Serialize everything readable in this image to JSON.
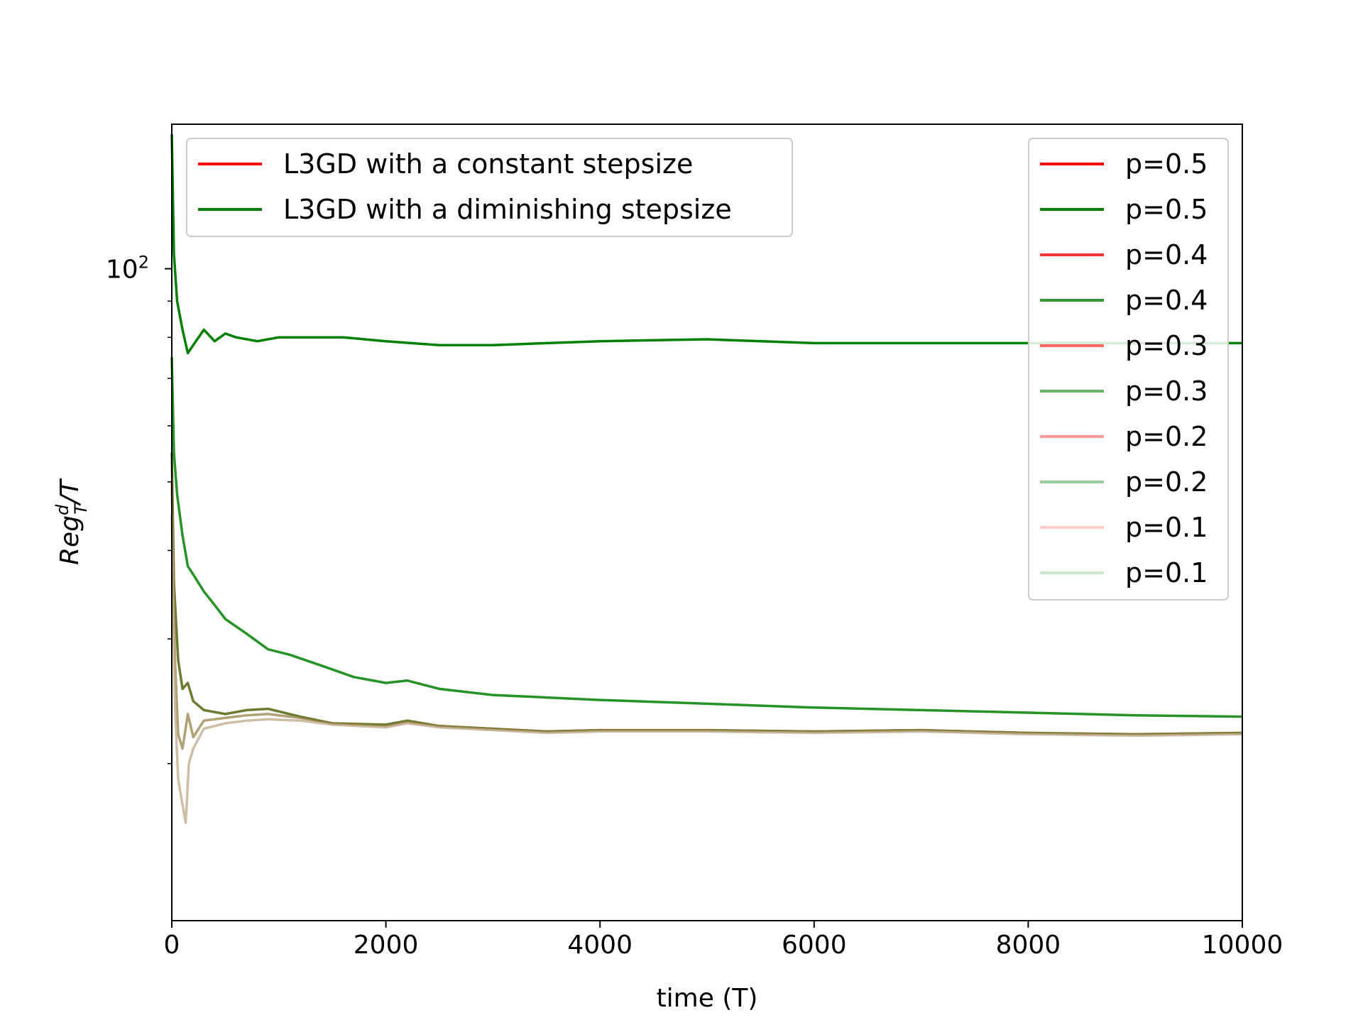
{
  "chart_data": {
    "type": "line",
    "title": "",
    "xlabel": "time (T)",
    "ylabel": {
      "base": "Reg",
      "sup": "d",
      "sub": "T",
      "suffix": "/T"
    },
    "xlim": [
      0,
      10000
    ],
    "ylim": [
      12,
      160
    ],
    "yscale": "log",
    "xticks": [
      0,
      2000,
      4000,
      6000,
      8000,
      10000
    ],
    "xtick_labels": [
      "0",
      "2000",
      "4000",
      "6000",
      "8000",
      "10000"
    ],
    "yticks_major": [
      {
        "value": 100,
        "base": "10",
        "exp": "2"
      }
    ],
    "yticks_minor": [
      20,
      30,
      40,
      50,
      60,
      70,
      80,
      90
    ],
    "grid": false,
    "colors": {
      "constant": "#ff0000",
      "diminishing": "#008000",
      "overlap": "#5a6e1a"
    },
    "legend_left": {
      "placement": "top-left",
      "entries": [
        {
          "label": "L3GD with a constant stepsize",
          "color": "#ff0000",
          "opacity": 1
        },
        {
          "label": "L3GD with a diminishing stepsize",
          "color": "#008000",
          "opacity": 1
        }
      ]
    },
    "legend_right": {
      "placement": "top-right",
      "entries": [
        {
          "label": "p=0.5",
          "color": "#ff0000",
          "opacity": 1.0
        },
        {
          "label": "p=0.5",
          "color": "#008000",
          "opacity": 1.0
        },
        {
          "label": "p=0.4",
          "color": "#ff0000",
          "opacity": 0.8
        },
        {
          "label": "p=0.4",
          "color": "#008000",
          "opacity": 0.8
        },
        {
          "label": "p=0.3",
          "color": "#ff0000",
          "opacity": 0.6
        },
        {
          "label": "p=0.3",
          "color": "#008000",
          "opacity": 0.6
        },
        {
          "label": "p=0.2",
          "color": "#ff0000",
          "opacity": 0.4
        },
        {
          "label": "p=0.2",
          "color": "#008000",
          "opacity": 0.4
        },
        {
          "label": "p=0.1",
          "color": "#ff0000",
          "opacity": 0.2
        },
        {
          "label": "p=0.1",
          "color": "#008000",
          "opacity": 0.2
        }
      ]
    },
    "series": [
      {
        "color": "#008000",
        "opacity": 1.0,
        "x": [
          0,
          20,
          50,
          100,
          150,
          200,
          300,
          400,
          500,
          600,
          800,
          1000,
          1300,
          1600,
          2000,
          2500,
          3000,
          3500,
          4000,
          5000,
          6000,
          7000,
          8000,
          9000,
          10000
        ],
        "y": [
          155,
          105,
          90,
          82,
          76,
          78,
          82,
          79,
          81,
          80,
          79,
          80,
          80,
          80,
          79,
          78,
          78,
          78.5,
          79,
          79.5,
          78.5,
          78.5,
          78.5,
          78.5,
          78.5
        ]
      },
      {
        "color": "#008000",
        "opacity": 0.85,
        "x": [
          0,
          20,
          50,
          100,
          150,
          200,
          300,
          400,
          500,
          700,
          900,
          1100,
          1400,
          1700,
          2000,
          2200,
          2500,
          3000,
          3500,
          4000,
          5000,
          6000,
          7000,
          8000,
          9000,
          10000
        ],
        "y": [
          75,
          55,
          48,
          42,
          38,
          37,
          35,
          33.5,
          32,
          30.5,
          29,
          28.5,
          27.5,
          26.5,
          26,
          26.2,
          25.5,
          25,
          24.8,
          24.6,
          24.3,
          24.0,
          23.8,
          23.6,
          23.4,
          23.3
        ]
      },
      {
        "color": "#5a6e1a",
        "opacity": 0.9,
        "x": [
          0,
          20,
          60,
          100,
          150,
          200,
          300,
          500,
          700,
          900,
          1200,
          1500,
          2000,
          2200,
          2500,
          3000,
          3500,
          4000,
          5000,
          6000,
          7000,
          8000,
          9000,
          10000
        ],
        "y": [
          55,
          36,
          28,
          25.5,
          26,
          24.5,
          23.8,
          23.5,
          23.8,
          23.9,
          23.3,
          22.8,
          22.7,
          23.0,
          22.6,
          22.4,
          22.2,
          22.3,
          22.3,
          22.2,
          22.3,
          22.1,
          22.0,
          22.1
        ]
      },
      {
        "color": "#8e7a3c",
        "opacity": 0.7,
        "x": [
          0,
          30,
          60,
          100,
          150,
          200,
          300,
          500,
          700,
          900,
          1200,
          1500,
          2000,
          2200,
          2500,
          3000,
          3500,
          4000,
          5000,
          6000,
          7000,
          8000,
          9000,
          10000
        ],
        "y": [
          50,
          28,
          22,
          21,
          23.5,
          21.8,
          23,
          23.2,
          23.4,
          23.5,
          23.2,
          22.8,
          22.6,
          22.9,
          22.6,
          22.4,
          22.2,
          22.3,
          22.3,
          22.2,
          22.3,
          22.1,
          22.0,
          22.1
        ]
      },
      {
        "color": "#bfa888",
        "opacity": 0.75,
        "x": [
          0,
          30,
          60,
          100,
          130,
          160,
          200,
          300,
          500,
          700,
          900,
          1200,
          1500,
          2000,
          2200,
          2500,
          3000,
          3500,
          4000,
          5000,
          6000,
          7000,
          8000,
          9000,
          10000
        ],
        "y": [
          45,
          24,
          19,
          17.5,
          16.5,
          20,
          21,
          22.4,
          22.8,
          23,
          23.1,
          23.0,
          22.7,
          22.5,
          22.8,
          22.5,
          22.3,
          22.1,
          22.2,
          22.2,
          22.1,
          22.2,
          22.0,
          21.9,
          22.0
        ]
      }
    ]
  }
}
